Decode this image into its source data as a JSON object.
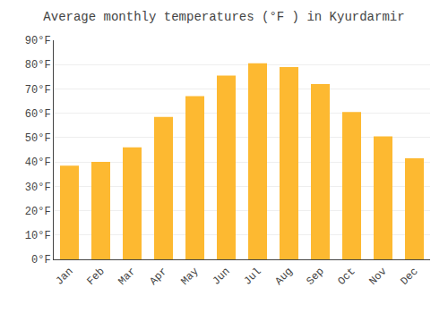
{
  "chart_data": {
    "type": "bar",
    "title": "Average monthly temperatures (°F ) in Kyurdarmir",
    "categories": [
      "Jan",
      "Feb",
      "Mar",
      "Apr",
      "May",
      "Jun",
      "Jul",
      "Aug",
      "Sep",
      "Oct",
      "Nov",
      "Dec"
    ],
    "values": [
      38.5,
      40.0,
      46.0,
      58.5,
      67.0,
      75.5,
      80.5,
      79.0,
      72.0,
      60.5,
      50.5,
      41.5
    ],
    "color": "#FDB931",
    "ylim": [
      0,
      90
    ],
    "yticks": [
      {
        "value": 0,
        "label": "0°F"
      },
      {
        "value": 10,
        "label": "10°F"
      },
      {
        "value": 20,
        "label": "20°F"
      },
      {
        "value": 30,
        "label": "30°F"
      },
      {
        "value": 40,
        "label": "40°F"
      },
      {
        "value": 50,
        "label": "50°F"
      },
      {
        "value": 60,
        "label": "60°F"
      },
      {
        "value": 70,
        "label": "70°F"
      },
      {
        "value": 80,
        "label": "80°F"
      },
      {
        "value": 90,
        "label": "90°F"
      }
    ],
    "grid": true
  }
}
